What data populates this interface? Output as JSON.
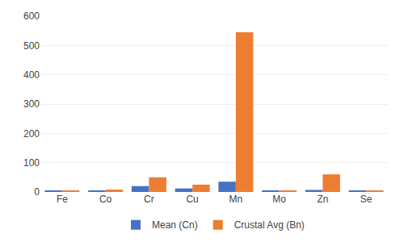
{
  "chart_data": {
    "type": "bar",
    "categories": [
      "Fe",
      "Co",
      "Cr",
      "Cu",
      "Mn",
      "Mo",
      "Zn",
      "Se"
    ],
    "series": [
      {
        "name": "Mean (Cn)",
        "color": "#4472C4",
        "values": [
          3,
          3,
          20,
          12,
          35,
          3,
          7,
          3
        ]
      },
      {
        "name": "Crustal Avg (Bn)",
        "color": "#ED7D31",
        "values": [
          5,
          8,
          50,
          25,
          545,
          5,
          60,
          5
        ]
      }
    ],
    "ylim": [
      0,
      600
    ],
    "yticks": [
      0,
      100,
      200,
      300,
      400,
      500,
      600
    ],
    "grid": true,
    "legend": "bottom"
  }
}
